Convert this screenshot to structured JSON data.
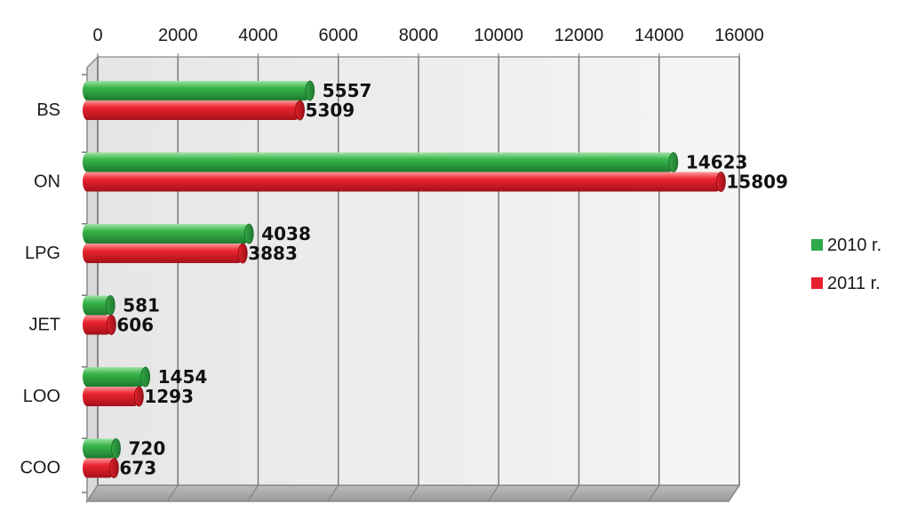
{
  "chart_data": {
    "type": "bar",
    "orientation": "horizontal",
    "categories": [
      "BS",
      "ON",
      "LPG",
      "JET",
      "LOO",
      "COO"
    ],
    "series": [
      {
        "name": "2010 r.",
        "color": "#2eaa48",
        "values": [
          5557,
          14623,
          4038,
          581,
          1454,
          720
        ]
      },
      {
        "name": "2011 r.",
        "color": "#e8202e",
        "values": [
          5309,
          15809,
          3883,
          606,
          1293,
          673
        ]
      }
    ],
    "xlim": [
      0,
      16000
    ],
    "x_ticks": [
      0,
      2000,
      4000,
      6000,
      8000,
      10000,
      12000,
      14000,
      16000
    ],
    "x_axis_position": "top",
    "grid": true,
    "legend_position": "right",
    "title": "",
    "xlabel": "",
    "ylabel": ""
  }
}
